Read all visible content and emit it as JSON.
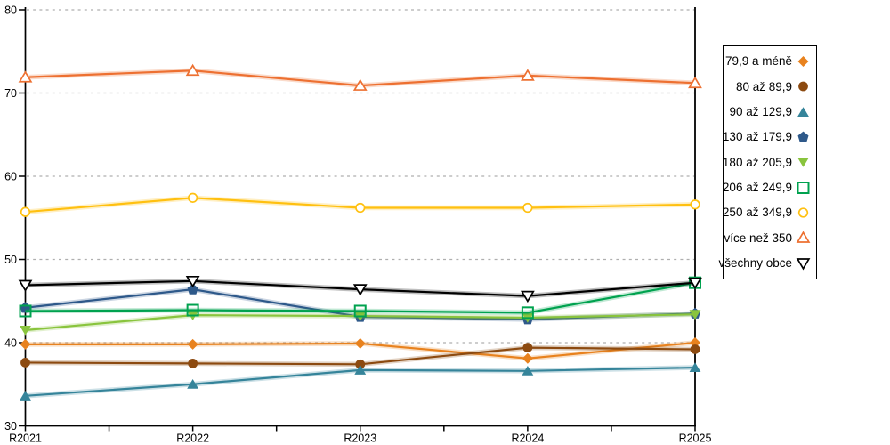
{
  "page": {
    "background": "#FFFFFF",
    "axis_color": "#000000",
    "grid_color": "#AFAFAF"
  },
  "chart_data": {
    "type": "line",
    "title": "",
    "xlabel": "",
    "ylabel": "",
    "categories": [
      "R2021",
      "R2022",
      "R2023",
      "R2024",
      "R2025"
    ],
    "ylim": [
      30,
      80
    ],
    "yticks": [
      30,
      40,
      50,
      60,
      70,
      80
    ],
    "grid": "horizontal-dashed",
    "legend_position": "right",
    "series": [
      {
        "name": "79,9 a méně",
        "marker": "diamond",
        "fill": "filled",
        "color": "#E8821E",
        "values": [
          39.8,
          39.8,
          39.9,
          38.1,
          40.0
        ]
      },
      {
        "name": "80 až 89,9",
        "marker": "circle",
        "fill": "filled",
        "color": "#8C4A10",
        "values": [
          37.6,
          37.5,
          37.4,
          39.4,
          39.2
        ]
      },
      {
        "name": "90 až 129,9",
        "marker": "triangle-up",
        "fill": "filled",
        "color": "#35849A",
        "values": [
          33.6,
          35.0,
          36.7,
          36.6,
          37.0
        ]
      },
      {
        "name": "130 až 179,9",
        "marker": "pentagon",
        "fill": "filled",
        "color": "#2E598A",
        "values": [
          44.2,
          46.4,
          43.1,
          42.8,
          43.5
        ]
      },
      {
        "name": "180 až 205,9",
        "marker": "triangle-down",
        "fill": "filled",
        "color": "#89C43D",
        "values": [
          41.5,
          43.3,
          43.2,
          43.0,
          43.4
        ]
      },
      {
        "name": "206 až 249,9",
        "marker": "square",
        "fill": "hollow",
        "color": "#00A24F",
        "values": [
          43.8,
          43.9,
          43.8,
          43.6,
          47.2
        ]
      },
      {
        "name": "250 až 349,9",
        "marker": "circle",
        "fill": "hollow",
        "color": "#FFC010",
        "values": [
          55.7,
          57.4,
          56.2,
          56.2,
          56.6
        ]
      },
      {
        "name": "více než 350",
        "marker": "triangle-up",
        "fill": "hollow",
        "color": "#ED7031",
        "values": [
          71.9,
          72.7,
          70.9,
          72.1,
          71.2
        ]
      },
      {
        "name": "všechny obce",
        "marker": "triangle-down",
        "fill": "hollow",
        "color": "#000000",
        "values": [
          46.9,
          47.4,
          46.4,
          45.6,
          47.2
        ]
      }
    ]
  }
}
